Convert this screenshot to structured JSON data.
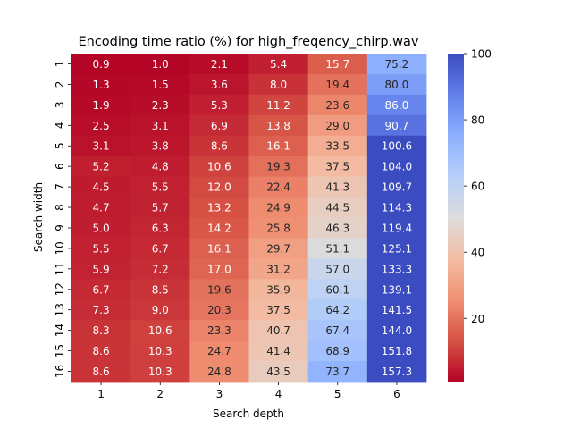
{
  "chart_data": {
    "type": "heatmap",
    "title": "Encoding time ratio (%) for high_freqency_chirp.wav",
    "xlabel": "Search depth",
    "ylabel": "Search width",
    "x_categories": [
      "1",
      "2",
      "3",
      "4",
      "5",
      "6"
    ],
    "y_categories": [
      "1",
      "2",
      "3",
      "4",
      "5",
      "6",
      "7",
      "8",
      "9",
      "10",
      "11",
      "12",
      "13",
      "14",
      "15",
      "16"
    ],
    "values": [
      [
        0.9,
        1.0,
        2.1,
        5.4,
        15.7,
        75.2
      ],
      [
        1.3,
        1.5,
        3.6,
        8.0,
        19.4,
        80.0
      ],
      [
        1.9,
        2.3,
        5.3,
        11.2,
        23.6,
        86.0
      ],
      [
        2.5,
        3.1,
        6.9,
        13.8,
        29.0,
        90.7
      ],
      [
        3.1,
        3.8,
        8.6,
        16.1,
        33.5,
        100.6
      ],
      [
        5.2,
        4.8,
        10.6,
        19.3,
        37.5,
        104.0
      ],
      [
        4.5,
        5.5,
        12.0,
        22.4,
        41.3,
        109.7
      ],
      [
        4.7,
        5.7,
        13.2,
        24.9,
        44.5,
        114.3
      ],
      [
        5.0,
        6.3,
        14.2,
        25.8,
        46.3,
        119.4
      ],
      [
        5.5,
        6.7,
        16.1,
        29.7,
        51.1,
        125.1
      ],
      [
        5.9,
        7.2,
        17.0,
        31.2,
        57.0,
        133.3
      ],
      [
        6.7,
        8.5,
        19.6,
        35.9,
        60.1,
        139.1
      ],
      [
        7.3,
        9.0,
        20.3,
        37.5,
        64.2,
        141.5
      ],
      [
        8.3,
        10.6,
        23.3,
        40.7,
        67.4,
        144.0
      ],
      [
        8.6,
        10.3,
        24.7,
        41.4,
        68.9,
        151.8
      ],
      [
        8.6,
        10.3,
        24.8,
        43.5,
        73.7,
        157.3
      ]
    ],
    "color_range": [
      0.9,
      100
    ],
    "colorscale": "coolwarm_r",
    "colorbar_ticks": [
      20,
      40,
      60,
      80,
      100
    ],
    "annotations": true
  }
}
